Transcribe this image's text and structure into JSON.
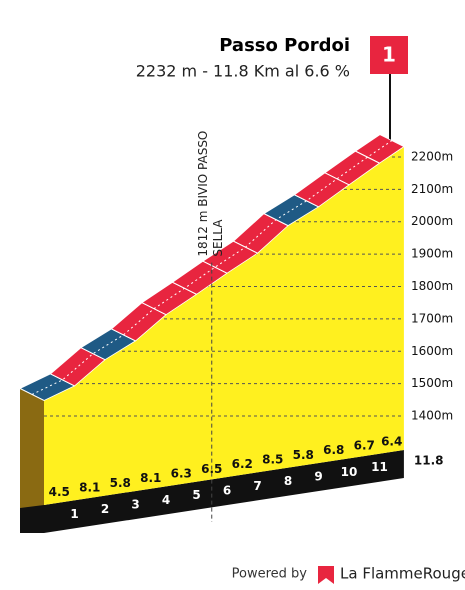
{
  "chart_data": {
    "type": "profile",
    "title": "Passo Pordoi",
    "subtitle": "2232 m - 11.8 Km al 6.6 %",
    "finish_label": "1",
    "x": [
      0,
      1,
      2,
      3,
      4,
      5,
      6,
      7,
      8,
      9,
      10,
      11,
      11.8
    ],
    "elevations": [
      1448,
      1493,
      1574,
      1632,
      1713,
      1776,
      1841,
      1903,
      1988,
      2046,
      2114,
      2181,
      2232
    ],
    "gradients": [
      4.5,
      8.1,
      5.8,
      8.1,
      6.3,
      6.5,
      6.2,
      8.5,
      5.8,
      6.8,
      6.7,
      6.4
    ],
    "gradient_colors": [
      "#1f5a85",
      "#e8253f",
      "#1f5a85",
      "#e8253f",
      "#e8253f",
      "#e8253f",
      "#e8253f",
      "#e8253f",
      "#1f5a85",
      "#e8253f",
      "#e8253f",
      "#e8253f"
    ],
    "face_color": "#fff01f",
    "ylim": [
      1300,
      2300
    ],
    "yticks": [
      {
        "value": 1400,
        "label": "1400m"
      },
      {
        "value": 1500,
        "label": "1500m"
      },
      {
        "value": 1600,
        "label": "1600m"
      },
      {
        "value": 1700,
        "label": "1700m"
      },
      {
        "value": 1800,
        "label": "1800m"
      },
      {
        "value": 1900,
        "label": "1900m"
      },
      {
        "value": 2000,
        "label": "2000m"
      },
      {
        "value": 2100,
        "label": "2100m"
      },
      {
        "value": 2200,
        "label": "2200m"
      }
    ],
    "grid": true,
    "annotation": {
      "lines": [
        "1812 m BIVIO PASSO",
        "SELLA"
      ],
      "km": 5.5,
      "elevation": 1812
    }
  },
  "footer": {
    "powered": "Powered by",
    "brand": "La FlammeRouge"
  }
}
